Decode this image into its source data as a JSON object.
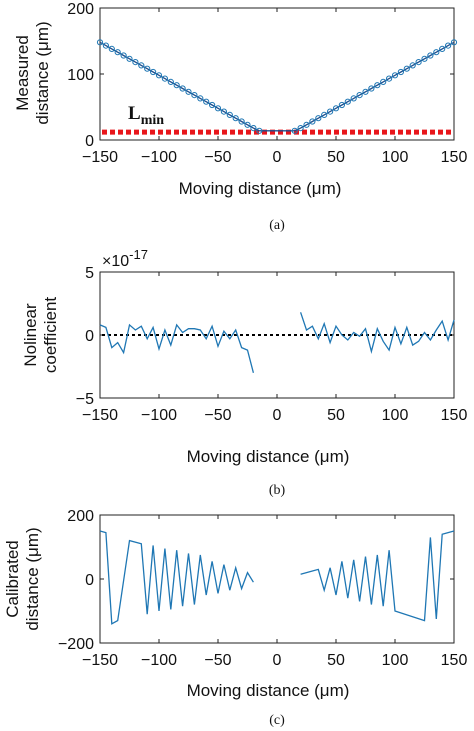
{
  "chart_data": [
    {
      "type": "scatter",
      "caption": "(a)",
      "xlabel": "Moving distance (μm)",
      "ylabel": [
        "Measured",
        "distance (μm)"
      ],
      "xlim": [
        -150,
        150
      ],
      "ylim": [
        0,
        200
      ],
      "xticks": [
        -150,
        -100,
        -50,
        0,
        50,
        100,
        150
      ],
      "yticks": [
        0,
        100,
        200
      ],
      "grid": false,
      "series": [
        {
          "markers": "circle",
          "color": "#1f77b4",
          "line_color": "#1f4e8c",
          "x": [
            -150,
            -145,
            -140,
            -135,
            -130,
            -125,
            -120,
            -115,
            -110,
            -105,
            -100,
            -95,
            -90,
            -85,
            -80,
            -75,
            -70,
            -65,
            -60,
            -55,
            -50,
            -45,
            -40,
            -35,
            -30,
            -25,
            -20,
            -15,
            15,
            20,
            25,
            30,
            35,
            40,
            45,
            50,
            55,
            60,
            65,
            70,
            75,
            80,
            85,
            90,
            95,
            100,
            105,
            110,
            115,
            120,
            125,
            130,
            135,
            140,
            145,
            150
          ],
          "y": [
            148,
            143,
            138,
            133,
            128,
            123,
            118,
            113,
            108,
            103,
            98,
            93,
            88,
            83,
            78,
            73,
            68,
            63,
            58,
            53,
            48,
            43,
            38,
            33,
            28,
            23,
            18,
            14,
            14,
            18,
            23,
            28,
            33,
            38,
            43,
            48,
            53,
            58,
            63,
            68,
            73,
            78,
            83,
            88,
            93,
            98,
            103,
            108,
            113,
            118,
            123,
            128,
            133,
            138,
            143,
            148
          ]
        }
      ],
      "annotation": {
        "text": "L",
        "subscript": "min",
        "y": 12,
        "color": "#e8161b",
        "style": "dotted"
      }
    },
    {
      "type": "line",
      "caption": "(b)",
      "xlabel": "Moving distance (μm)",
      "ylabel": [
        "Nolinear",
        "coefficient"
      ],
      "xlim": [
        -150,
        150
      ],
      "ylim": [
        -5,
        5
      ],
      "xticks": [
        -150,
        -100,
        -50,
        0,
        50,
        100,
        150
      ],
      "yticks": [
        -5,
        0,
        5
      ],
      "scale_label": "×10",
      "scale_exponent": "-17",
      "grid": false,
      "zero_line": {
        "y": 0,
        "color": "#000000",
        "style": "dotted"
      },
      "series": [
        {
          "color": "#1f77b4",
          "x": [
            -150,
            -145,
            -140,
            -135,
            -130,
            -125,
            -120,
            -115,
            -110,
            -105,
            -100,
            -95,
            -90,
            -85,
            -80,
            -75,
            -70,
            -65,
            -60,
            -55,
            -50,
            -45,
            -40,
            -35,
            -30,
            -25,
            -20,
            -15
          ],
          "y": [
            0.8,
            0.6,
            -1.0,
            -0.6,
            -1.4,
            0.8,
            0.4,
            0.7,
            -0.3,
            0.6,
            -1.1,
            0.4,
            -0.8,
            0.8,
            0.2,
            0.5,
            0.5,
            0.4,
            -0.3,
            0.7,
            -0.9,
            0.3,
            -0.3,
            0.4,
            -1.0,
            -1.2,
            -3.0,
            null
          ]
        },
        {
          "color": "#1f77b4",
          "x": [
            20,
            25,
            30,
            35,
            40,
            45,
            50,
            55,
            60,
            65,
            70,
            75,
            80,
            85,
            90,
            95,
            100,
            105,
            110,
            115,
            120,
            125,
            130,
            135,
            140,
            145,
            150
          ],
          "y": [
            1.8,
            0.4,
            0.7,
            -0.3,
            0.9,
            -0.6,
            0.7,
            0.0,
            -0.4,
            0.2,
            -0.1,
            0.5,
            -1.3,
            0.5,
            -0.5,
            -1.2,
            0.6,
            -0.7,
            0.6,
            -0.8,
            -0.5,
            0.2,
            -0.4,
            0.4,
            1.1,
            -0.4,
            1.2
          ]
        }
      ]
    },
    {
      "type": "line",
      "caption": "(c)",
      "xlabel": "Moving distance (μm)",
      "ylabel": [
        "Calibrated",
        "distance (μm)"
      ],
      "xlim": [
        -150,
        150
      ],
      "ylim": [
        -200,
        200
      ],
      "xticks": [
        -150,
        -100,
        -50,
        0,
        50,
        100,
        150
      ],
      "yticks": [
        -200,
        0,
        200
      ],
      "grid": false,
      "series": [
        {
          "color": "#1f77b4",
          "x": [
            -150,
            -145,
            -140,
            -135,
            -125,
            -115,
            -110,
            -105,
            -100,
            -95,
            -90,
            -85,
            -80,
            -75,
            -70,
            -65,
            -60,
            -55,
            -50,
            -45,
            -40,
            -35,
            -30,
            -25,
            -20,
            -15
          ],
          "y": [
            150,
            145,
            -140,
            -130,
            120,
            110,
            -110,
            105,
            -100,
            95,
            -95,
            90,
            -85,
            80,
            -80,
            75,
            -50,
            55,
            -45,
            45,
            -35,
            35,
            -30,
            20,
            -10,
            null
          ]
        },
        {
          "color": "#1f77b4",
          "x": [
            20,
            25,
            30,
            35,
            40,
            45,
            50,
            55,
            60,
            65,
            70,
            75,
            80,
            85,
            90,
            95,
            100,
            125,
            130,
            135,
            140,
            145,
            150
          ],
          "y": [
            15,
            20,
            25,
            30,
            -35,
            35,
            -50,
            55,
            -60,
            60,
            -70,
            70,
            -80,
            75,
            -85,
            90,
            -100,
            -130,
            130,
            -125,
            140,
            145,
            150
          ]
        }
      ]
    }
  ]
}
